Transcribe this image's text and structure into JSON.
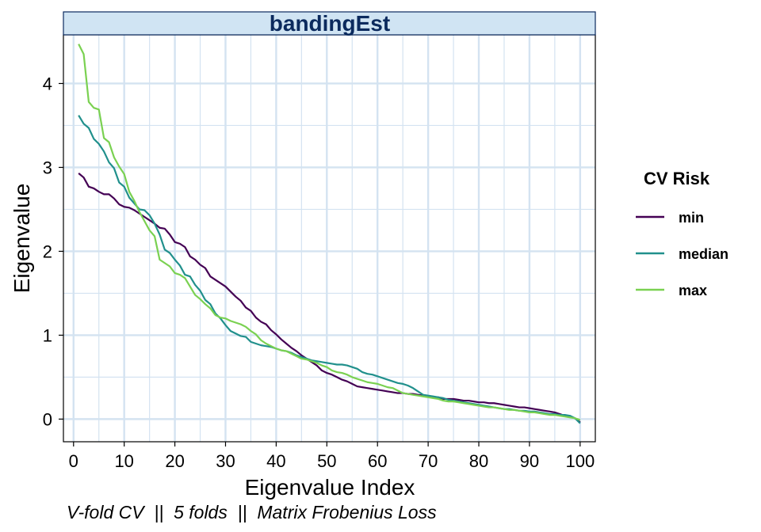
{
  "chart_data": {
    "type": "line",
    "facet_title": "bandingEst",
    "xlabel": "Eigenvalue Index",
    "ylabel": "Eigenvalue",
    "caption": "V-fold CV  ||  5 folds  ||  Matrix Frobenius Loss",
    "xlim": [
      -2,
      103
    ],
    "ylim": [
      -0.27,
      4.58
    ],
    "x_ticks": [
      0,
      10,
      20,
      30,
      40,
      50,
      60,
      70,
      80,
      90,
      100
    ],
    "y_ticks": [
      0,
      1,
      2,
      3,
      4
    ],
    "grid": true,
    "legend": {
      "title": "CV Risk",
      "position": "right"
    },
    "series": [
      {
        "name": "min",
        "color": "#440154",
        "x": [
          1,
          2,
          3,
          4,
          5,
          6,
          7,
          8,
          9,
          10,
          11,
          12,
          13,
          14,
          15,
          16,
          17,
          18,
          19,
          20,
          21,
          22,
          23,
          24,
          25,
          26,
          27,
          28,
          29,
          30,
          31,
          32,
          33,
          34,
          35,
          36,
          37,
          38,
          39,
          40,
          41,
          42,
          43,
          44,
          45,
          46,
          47,
          48,
          49,
          50,
          51,
          52,
          53,
          54,
          55,
          56,
          57,
          58,
          59,
          60,
          61,
          62,
          63,
          64,
          65,
          66,
          67,
          68,
          69,
          70,
          71,
          72,
          73,
          74,
          75,
          76,
          77,
          78,
          79,
          80,
          81,
          82,
          83,
          84,
          85,
          86,
          87,
          88,
          89,
          90,
          91,
          92,
          93,
          94,
          95,
          96,
          97,
          98,
          99,
          100
        ],
        "y": [
          2.93,
          2.88,
          2.77,
          2.75,
          2.71,
          2.68,
          2.68,
          2.63,
          2.56,
          2.53,
          2.52,
          2.49,
          2.45,
          2.41,
          2.37,
          2.33,
          2.28,
          2.27,
          2.2,
          2.11,
          2.09,
          2.05,
          1.94,
          1.9,
          1.84,
          1.8,
          1.7,
          1.66,
          1.62,
          1.58,
          1.52,
          1.46,
          1.41,
          1.33,
          1.29,
          1.21,
          1.16,
          1.13,
          1.06,
          1.01,
          0.95,
          0.9,
          0.85,
          0.81,
          0.76,
          0.72,
          0.68,
          0.64,
          0.58,
          0.55,
          0.53,
          0.5,
          0.47,
          0.45,
          0.42,
          0.39,
          0.38,
          0.37,
          0.36,
          0.35,
          0.34,
          0.33,
          0.32,
          0.31,
          0.31,
          0.3,
          0.3,
          0.29,
          0.28,
          0.27,
          0.26,
          0.26,
          0.24,
          0.24,
          0.24,
          0.23,
          0.22,
          0.22,
          0.21,
          0.2,
          0.2,
          0.19,
          0.19,
          0.18,
          0.17,
          0.16,
          0.15,
          0.14,
          0.14,
          0.13,
          0.12,
          0.11,
          0.1,
          0.09,
          0.08,
          0.06,
          0.04,
          0.03,
          0.01,
          -0.04
        ]
      },
      {
        "name": "median",
        "color": "#21908C",
        "x": [
          1,
          2,
          3,
          4,
          5,
          6,
          7,
          8,
          9,
          10,
          11,
          12,
          13,
          14,
          15,
          16,
          17,
          18,
          19,
          20,
          21,
          22,
          23,
          24,
          25,
          26,
          27,
          28,
          29,
          30,
          31,
          32,
          33,
          34,
          35,
          36,
          37,
          38,
          39,
          40,
          41,
          42,
          43,
          44,
          45,
          46,
          47,
          48,
          49,
          50,
          51,
          52,
          53,
          54,
          55,
          56,
          57,
          58,
          59,
          60,
          61,
          62,
          63,
          64,
          65,
          66,
          67,
          68,
          69,
          70,
          71,
          72,
          73,
          74,
          75,
          76,
          77,
          78,
          79,
          80,
          81,
          82,
          83,
          84,
          85,
          86,
          87,
          88,
          89,
          90,
          91,
          92,
          93,
          94,
          95,
          96,
          97,
          98,
          99,
          100
        ],
        "y": [
          3.62,
          3.52,
          3.47,
          3.34,
          3.28,
          3.19,
          3.06,
          2.99,
          2.82,
          2.77,
          2.64,
          2.57,
          2.5,
          2.49,
          2.43,
          2.33,
          2.2,
          2.02,
          1.98,
          1.9,
          1.83,
          1.72,
          1.7,
          1.6,
          1.53,
          1.42,
          1.37,
          1.26,
          1.2,
          1.12,
          1.05,
          1.02,
          0.99,
          0.98,
          0.92,
          0.9,
          0.88,
          0.87,
          0.86,
          0.84,
          0.82,
          0.81,
          0.79,
          0.76,
          0.74,
          0.72,
          0.7,
          0.69,
          0.68,
          0.67,
          0.66,
          0.65,
          0.65,
          0.64,
          0.62,
          0.6,
          0.56,
          0.54,
          0.53,
          0.51,
          0.49,
          0.47,
          0.45,
          0.43,
          0.42,
          0.4,
          0.37,
          0.33,
          0.29,
          0.28,
          0.27,
          0.26,
          0.25,
          0.23,
          0.22,
          0.21,
          0.2,
          0.19,
          0.18,
          0.17,
          0.16,
          0.15,
          0.14,
          0.13,
          0.12,
          0.12,
          0.11,
          0.1,
          0.1,
          0.09,
          0.09,
          0.08,
          0.07,
          0.06,
          0.06,
          0.05,
          0.05,
          0.04,
          0.01,
          -0.05
        ]
      },
      {
        "name": "max",
        "color": "#7AD151",
        "x": [
          1,
          2,
          3,
          4,
          5,
          6,
          7,
          8,
          9,
          10,
          11,
          12,
          13,
          14,
          15,
          16,
          17,
          18,
          19,
          20,
          21,
          22,
          23,
          24,
          25,
          26,
          27,
          28,
          29,
          30,
          31,
          32,
          33,
          34,
          35,
          36,
          37,
          38,
          39,
          40,
          41,
          42,
          43,
          44,
          45,
          46,
          47,
          48,
          49,
          50,
          51,
          52,
          53,
          54,
          55,
          56,
          57,
          58,
          59,
          60,
          61,
          62,
          63,
          64,
          65,
          66,
          67,
          68,
          69,
          70,
          71,
          72,
          73,
          74,
          75,
          76,
          77,
          78,
          79,
          80,
          81,
          82,
          83,
          84,
          85,
          86,
          87,
          88,
          89,
          90,
          91,
          92,
          93,
          94,
          95,
          96,
          97,
          98,
          99,
          100
        ],
        "y": [
          4.47,
          4.35,
          3.78,
          3.71,
          3.69,
          3.35,
          3.3,
          3.12,
          3.01,
          2.92,
          2.71,
          2.6,
          2.47,
          2.36,
          2.25,
          2.18,
          1.9,
          1.86,
          1.82,
          1.74,
          1.72,
          1.68,
          1.58,
          1.48,
          1.43,
          1.37,
          1.32,
          1.24,
          1.21,
          1.2,
          1.17,
          1.15,
          1.13,
          1.1,
          1.05,
          1.01,
          0.94,
          0.9,
          0.87,
          0.84,
          0.82,
          0.81,
          0.78,
          0.75,
          0.72,
          0.71,
          0.69,
          0.67,
          0.64,
          0.62,
          0.58,
          0.56,
          0.55,
          0.53,
          0.5,
          0.48,
          0.46,
          0.44,
          0.43,
          0.42,
          0.4,
          0.38,
          0.37,
          0.34,
          0.31,
          0.3,
          0.29,
          0.28,
          0.27,
          0.26,
          0.25,
          0.24,
          0.22,
          0.21,
          0.21,
          0.2,
          0.19,
          0.18,
          0.17,
          0.16,
          0.15,
          0.14,
          0.14,
          0.13,
          0.12,
          0.11,
          0.11,
          0.1,
          0.09,
          0.08,
          0.08,
          0.07,
          0.06,
          0.05,
          0.05,
          0.04,
          0.03,
          0.02,
          0.01,
          -0.01
        ]
      }
    ]
  }
}
